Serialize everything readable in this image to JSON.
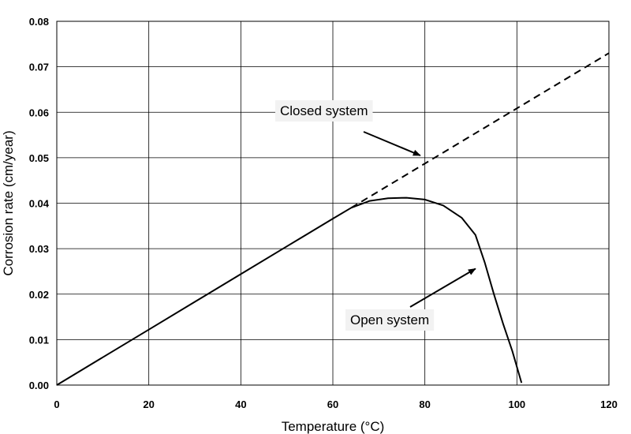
{
  "chart_data": {
    "type": "line",
    "xlabel": "Temperature (°C)",
    "ylabel": "Corrosion rate (cm/year)",
    "xlim": [
      0,
      120
    ],
    "ylim": [
      0,
      0.08
    ],
    "x_ticks": [
      "0",
      "20",
      "40",
      "60",
      "80",
      "100",
      "120"
    ],
    "y_ticks": [
      "0.00",
      "0.01",
      "0.02",
      "0.03",
      "0.04",
      "0.05",
      "0.06",
      "0.07",
      "0.08"
    ],
    "grid": true,
    "series": [
      {
        "name": "Closed system",
        "style": "dashed",
        "x": [
          64,
          120
        ],
        "y": [
          0.039,
          0.073
        ]
      },
      {
        "name": "Open system",
        "style": "solid",
        "x": [
          0,
          10,
          20,
          30,
          40,
          50,
          60,
          64,
          68,
          72,
          76,
          80,
          84,
          88,
          91,
          93,
          95,
          97,
          99,
          101
        ],
        "y": [
          0.0,
          0.0061,
          0.0122,
          0.0183,
          0.0244,
          0.0305,
          0.0366,
          0.039,
          0.0405,
          0.0411,
          0.0412,
          0.0408,
          0.0395,
          0.0368,
          0.033,
          0.027,
          0.02,
          0.0135,
          0.0075,
          0.0005
        ]
      }
    ],
    "annotations": [
      {
        "text": "Closed system",
        "arrow_to": [
          79,
          0.0505
        ]
      },
      {
        "text": "Open system",
        "arrow_to": [
          91,
          0.0256
        ]
      }
    ]
  }
}
